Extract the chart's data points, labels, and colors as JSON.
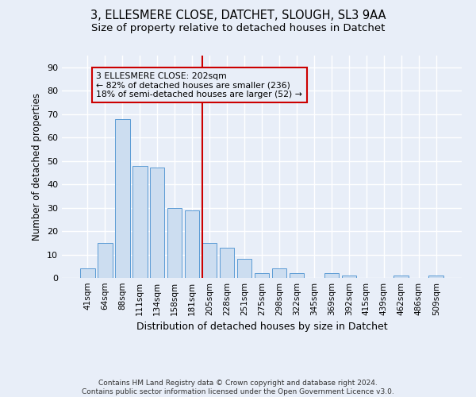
{
  "title1": "3, ELLESMERE CLOSE, DATCHET, SLOUGH, SL3 9AA",
  "title2": "Size of property relative to detached houses in Datchet",
  "xlabel": "Distribution of detached houses by size in Datchet",
  "ylabel": "Number of detached properties",
  "bar_color": "#ccddf0",
  "bar_edge_color": "#5b9bd5",
  "categories": [
    "41sqm",
    "64sqm",
    "88sqm",
    "111sqm",
    "134sqm",
    "158sqm",
    "181sqm",
    "205sqm",
    "228sqm",
    "251sqm",
    "275sqm",
    "298sqm",
    "322sqm",
    "345sqm",
    "369sqm",
    "392sqm",
    "415sqm",
    "439sqm",
    "462sqm",
    "486sqm",
    "509sqm"
  ],
  "values": [
    4,
    15,
    68,
    48,
    47,
    30,
    29,
    15,
    13,
    8,
    2,
    4,
    2,
    0,
    2,
    1,
    0,
    0,
    1,
    0,
    1
  ],
  "ylim": [
    0,
    95
  ],
  "yticks": [
    0,
    10,
    20,
    30,
    40,
    50,
    60,
    70,
    80,
    90
  ],
  "annotation_line1": "3 ELLESMERE CLOSE: 202sqm",
  "annotation_line2": "← 82% of detached houses are smaller (236)",
  "annotation_line3": "18% of semi-detached houses are larger (52) →",
  "vline_color": "#cc0000",
  "footnote1": "Contains HM Land Registry data © Crown copyright and database right 2024.",
  "footnote2": "Contains public sector information licensed under the Open Government Licence v3.0.",
  "background_color": "#e8eef8",
  "grid_color": "#ffffff",
  "title1_fontsize": 10.5,
  "title2_fontsize": 9.5,
  "vline_x_index": 6.57
}
